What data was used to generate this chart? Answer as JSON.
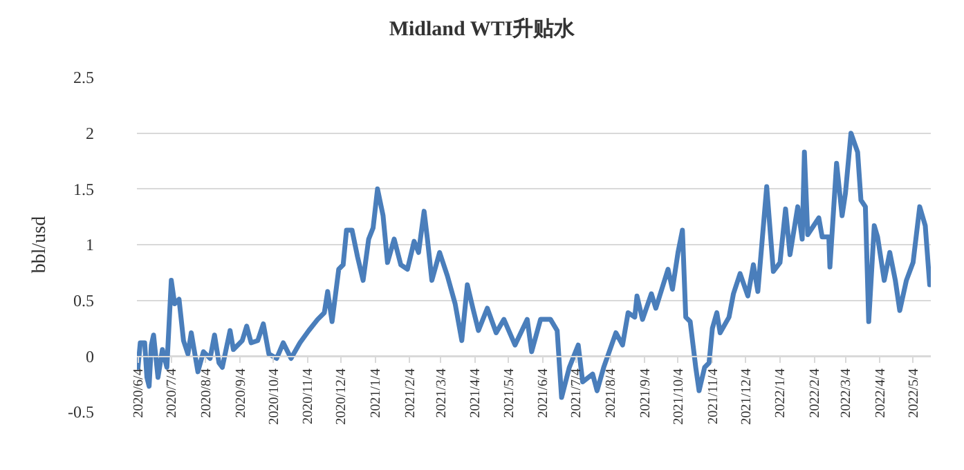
{
  "chart_data": {
    "type": "line",
    "title": "Midland WTI升贴水",
    "ylabel": "bbl/usd",
    "x": [
      "2020-06-04",
      "2020-06-06",
      "2020-06-10",
      "2020-06-12",
      "2020-06-14",
      "2020-06-16",
      "2020-06-18",
      "2020-06-22",
      "2020-06-26",
      "2020-06-30",
      "2020-07-04",
      "2020-07-07",
      "2020-07-11",
      "2020-07-15",
      "2020-07-19",
      "2020-07-22",
      "2020-07-28",
      "2020-08-02",
      "2020-08-08",
      "2020-08-12",
      "2020-08-16",
      "2020-08-19",
      "2020-08-26",
      "2020-08-29",
      "2020-09-06",
      "2020-09-10",
      "2020-09-14",
      "2020-09-20",
      "2020-09-25",
      "2020-09-30",
      "2020-10-07",
      "2020-10-13",
      "2020-10-20",
      "2020-10-28",
      "2020-11-05",
      "2020-11-13",
      "2020-11-19",
      "2020-11-22",
      "2020-11-26",
      "2020-12-02",
      "2020-12-06",
      "2020-12-09",
      "2020-12-14",
      "2020-12-19",
      "2020-12-24",
      "2020-12-29",
      "2021-01-02",
      "2021-01-06",
      "2021-01-11",
      "2021-01-15",
      "2021-01-21",
      "2021-01-27",
      "2021-02-02",
      "2021-02-08",
      "2021-02-12",
      "2021-02-17",
      "2021-02-20",
      "2021-02-24",
      "2021-03-03",
      "2021-03-10",
      "2021-03-17",
      "2021-03-23",
      "2021-03-28",
      "2021-04-02",
      "2021-04-07",
      "2021-04-15",
      "2021-04-23",
      "2021-04-30",
      "2021-05-10",
      "2021-05-21",
      "2021-05-25",
      "2021-06-02",
      "2021-06-11",
      "2021-06-17",
      "2021-06-21",
      "2021-06-28",
      "2021-07-06",
      "2021-07-10",
      "2021-07-19",
      "2021-07-23",
      "2021-07-29",
      "2021-08-09",
      "2021-08-15",
      "2021-08-20",
      "2021-08-26",
      "2021-08-28",
      "2021-09-02",
      "2021-09-10",
      "2021-09-14",
      "2021-09-25",
      "2021-09-29",
      "2021-10-04",
      "2021-10-08",
      "2021-10-11",
      "2021-10-15",
      "2021-10-20",
      "2021-10-23",
      "2021-10-28",
      "2021-11-01",
      "2021-11-04",
      "2021-11-08",
      "2021-11-11",
      "2021-11-19",
      "2021-11-23",
      "2021-11-29",
      "2021-12-06",
      "2021-12-11",
      "2021-12-15",
      "2021-12-23",
      "2021-12-29",
      "2022-01-04",
      "2022-01-09",
      "2022-01-13",
      "2022-01-20",
      "2022-01-24",
      "2022-01-26",
      "2022-01-29",
      "2022-02-08",
      "2022-02-11",
      "2022-02-17",
      "2022-02-18",
      "2022-02-24",
      "2022-03-01",
      "2022-03-04",
      "2022-03-09",
      "2022-03-15",
      "2022-03-18",
      "2022-03-22",
      "2022-03-25",
      "2022-03-30",
      "2022-04-02",
      "2022-04-08",
      "2022-04-13",
      "2022-04-18",
      "2022-04-22",
      "2022-04-28",
      "2022-05-04",
      "2022-05-10",
      "2022-05-15",
      "2022-05-19"
    ],
    "series": [
      {
        "color": "#4a7ebb",
        "values": [
          -0.1,
          0.12,
          0.12,
          -0.19,
          -0.27,
          0.1,
          0.19,
          -0.19,
          0.06,
          -0.1,
          0.68,
          0.47,
          0.51,
          0.14,
          0.02,
          0.21,
          -0.14,
          0.04,
          -0.02,
          0.19,
          -0.06,
          -0.1,
          0.23,
          0.06,
          0.14,
          0.27,
          0.12,
          0.14,
          0.29,
          0.02,
          -0.02,
          0.12,
          -0.02,
          0.12,
          0.23,
          0.33,
          0.39,
          0.58,
          0.31,
          0.78,
          0.82,
          1.13,
          1.13,
          0.89,
          0.68,
          1.05,
          1.15,
          1.5,
          1.26,
          0.84,
          1.05,
          0.82,
          0.78,
          1.03,
          0.93,
          1.3,
          1.05,
          0.68,
          0.93,
          0.72,
          0.47,
          0.14,
          0.64,
          0.43,
          0.23,
          0.43,
          0.21,
          0.33,
          0.1,
          0.33,
          0.04,
          0.33,
          0.33,
          0.23,
          -0.37,
          -0.1,
          0.1,
          -0.23,
          -0.16,
          -0.31,
          -0.1,
          0.21,
          0.1,
          0.39,
          0.35,
          0.54,
          0.33,
          0.56,
          0.43,
          0.78,
          0.6,
          0.93,
          1.13,
          0.35,
          0.31,
          -0.1,
          -0.31,
          -0.1,
          -0.06,
          0.25,
          0.39,
          0.21,
          0.35,
          0.56,
          0.74,
          0.54,
          0.82,
          0.58,
          1.52,
          0.76,
          0.84,
          1.32,
          0.91,
          1.34,
          1.05,
          1.83,
          1.09,
          1.24,
          1.07,
          1.07,
          0.8,
          1.73,
          1.26,
          1.46,
          2.0,
          1.83,
          1.4,
          1.34,
          0.31,
          1.17,
          1.07,
          0.68,
          0.93,
          0.68,
          0.41,
          0.68,
          0.84,
          1.34,
          1.17,
          0.64
        ]
      }
    ],
    "xlim": [
      "2020-06-03",
      "2022-05-20"
    ],
    "xticks": [
      {
        "value": "2020-06-04",
        "label": "2020/6/4"
      },
      {
        "value": "2020-07-04",
        "label": "2020/7/4"
      },
      {
        "value": "2020-08-04",
        "label": "2020/8/4"
      },
      {
        "value": "2020-09-04",
        "label": "2020/9/4"
      },
      {
        "value": "2020-10-04",
        "label": "2020/10/4"
      },
      {
        "value": "2020-11-04",
        "label": "2020/11/4"
      },
      {
        "value": "2020-12-04",
        "label": "2020/12/4"
      },
      {
        "value": "2021-01-04",
        "label": "2021/1/4"
      },
      {
        "value": "2021-02-04",
        "label": "2021/2/4"
      },
      {
        "value": "2021-03-04",
        "label": "2021/3/4"
      },
      {
        "value": "2021-04-04",
        "label": "2021/4/4"
      },
      {
        "value": "2021-05-04",
        "label": "2021/5/4"
      },
      {
        "value": "2021-06-04",
        "label": "2021/6/4"
      },
      {
        "value": "2021-07-04",
        "label": "2021/7/4"
      },
      {
        "value": "2021-08-04",
        "label": "2021/8/4"
      },
      {
        "value": "2021-09-04",
        "label": "2021/9/4"
      },
      {
        "value": "2021-10-04",
        "label": "2021/10/4"
      },
      {
        "value": "2021-11-04",
        "label": "2021/11/4"
      },
      {
        "value": "2021-12-04",
        "label": "2021/12/4"
      },
      {
        "value": "2022-01-04",
        "label": "2022/1/4"
      },
      {
        "value": "2022-02-04",
        "label": "2022/2/4"
      },
      {
        "value": "2022-03-04",
        "label": "2022/3/4"
      },
      {
        "value": "2022-04-04",
        "label": "2022/4/4"
      },
      {
        "value": "2022-05-04",
        "label": "2022/5/4"
      }
    ],
    "ylim": [
      -0.5,
      2.5
    ],
    "yticks": [
      {
        "value": -0.5,
        "label": "-0.5"
      },
      0,
      {
        "value": 0.5,
        "label": "0.5"
      },
      1,
      {
        "value": 1.5,
        "label": "1.5"
      },
      2,
      {
        "value": 2.5,
        "label": "2.5"
      }
    ],
    "grid": "y",
    "marker": "none",
    "line_style": "solid"
  }
}
